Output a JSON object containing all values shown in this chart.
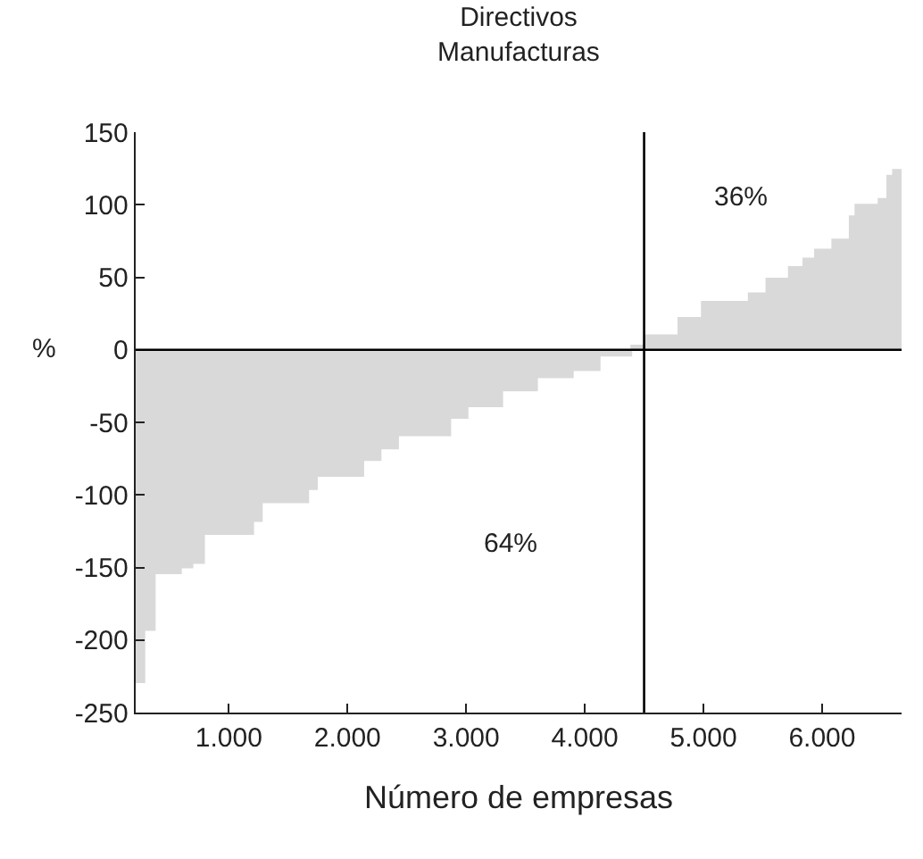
{
  "chart_data": {
    "type": "area",
    "title": "Directivos\nManufacturas",
    "xlabel": "Número de empresas",
    "ylabel": "%",
    "x": [
      215,
      288,
      376,
      596,
      693,
      791,
      1205,
      1278,
      1669,
      1742,
      2133,
      2279,
      2426,
      2866,
      3012,
      3304,
      3597,
      3899,
      4125,
      4392,
      4502,
      4789,
      4987,
      5382,
      5531,
      5720,
      5842,
      5940,
      6086,
      6233,
      6281,
      6476,
      6550,
      6598,
      6670
    ],
    "series": [
      {
        "color": "#d9d9d9",
        "values": [
          -229,
          -193,
          -154,
          -150,
          -147,
          -127,
          -118,
          -105,
          -96,
          -87,
          -76,
          -68,
          -59,
          -47,
          -39,
          -28,
          -19,
          -14,
          -4,
          3,
          10,
          22,
          33,
          39,
          49,
          57,
          63,
          69,
          76,
          92,
          100,
          104,
          120,
          124,
          124
        ]
      }
    ],
    "xlim": [
      215,
      6670
    ],
    "ylim": [
      -250,
      150
    ],
    "xticks": [
      {
        "value": 1000,
        "label": "1.000"
      },
      {
        "value": 2000,
        "label": "2.000"
      },
      {
        "value": 3000,
        "label": "3.000"
      },
      {
        "value": 4000,
        "label": "4.000"
      },
      {
        "value": 5000,
        "label": "5.000"
      },
      {
        "value": 6000,
        "label": "6.000"
      }
    ],
    "yticks": [
      -250,
      -200,
      -150,
      -100,
      -50,
      0,
      50,
      100,
      150
    ],
    "ref_lines": [
      {
        "axis": "x",
        "value": 4500,
        "color": "#000000"
      },
      {
        "axis": "y",
        "value": 0,
        "color": "#000000"
      }
    ],
    "annotations": [
      "64%",
      "36%"
    ],
    "grid": false
  }
}
